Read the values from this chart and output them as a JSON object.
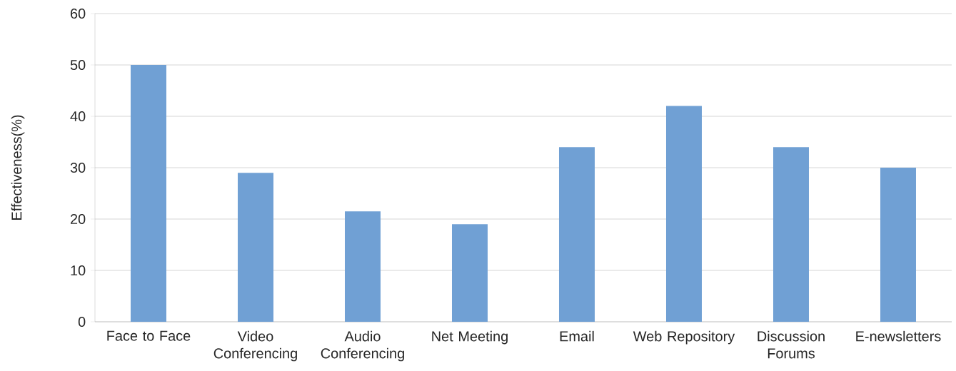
{
  "chart_data": {
    "type": "bar",
    "ylabel": "Effectiveness(%)",
    "categories": [
      "Face to Face",
      "Video Conferencing",
      "Audio Conferencing",
      "Net Meeting",
      "Email",
      "Web Repository",
      "Discussion Forums",
      "E-newsletters"
    ],
    "values": [
      50,
      29,
      21.5,
      19,
      34,
      42,
      34,
      30
    ],
    "color": "#70a0d4",
    "ylim": [
      0,
      60
    ],
    "yticks": [
      0,
      10,
      20,
      30,
      40,
      50,
      60
    ],
    "grid": "y"
  }
}
